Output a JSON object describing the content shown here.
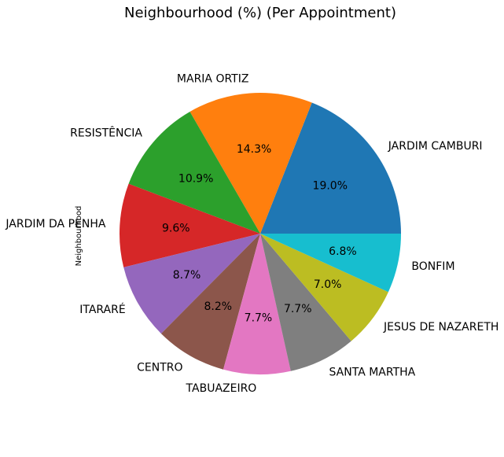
{
  "chart_data": {
    "type": "pie",
    "title": "Neighbourhood (%) (Per Appointment)",
    "ylabel": "Neighbourhood",
    "categories": [
      "JARDIM CAMBURI",
      "MARIA ORTIZ",
      "RESISTÊNCIA",
      "JARDIM DA PENHA",
      "ITARARÉ",
      "CENTRO",
      "TABUAZEIRO",
      "SANTA MARTHA",
      "JESUS DE NAZARETH",
      "BONFIM"
    ],
    "values": [
      19.0,
      14.3,
      10.9,
      9.6,
      8.7,
      8.2,
      7.7,
      7.7,
      7.0,
      6.8
    ],
    "value_labels": [
      "19.0%",
      "14.3%",
      "10.9%",
      "9.6%",
      "8.7%",
      "8.2%",
      "7.7%",
      "7.7%",
      "7.0%",
      "6.8%"
    ],
    "colors": [
      "#1f77b4",
      "#ff7f0e",
      "#2ca02c",
      "#d62728",
      "#9467bd",
      "#8c564b",
      "#e377c2",
      "#7f7f7f",
      "#bcbd22",
      "#17becf"
    ]
  }
}
